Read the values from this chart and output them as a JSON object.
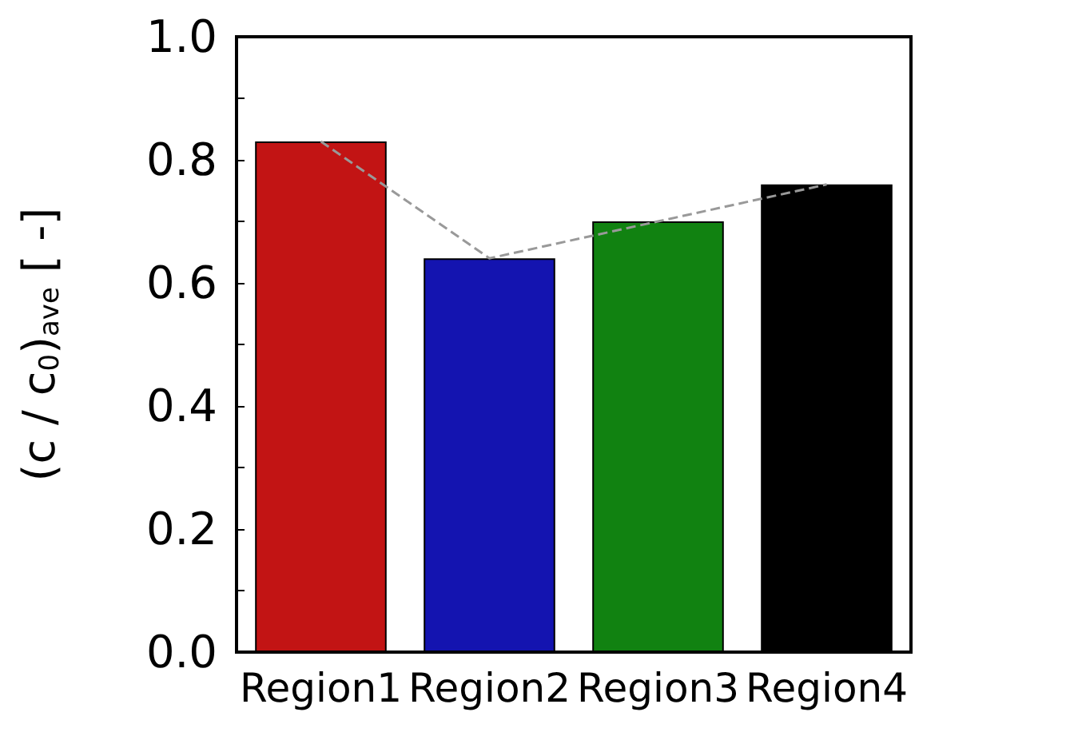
{
  "chart_data": {
    "type": "bar",
    "ylabel": "(c / c$_{0}$)$_{ave}$ [ -]",
    "categories": [
      "Region1",
      "Region2",
      "Region3",
      "Region4"
    ],
    "series": [
      {
        "colors": [
          "#c21414",
          "#1414b0",
          "#118211",
          "#000000"
        ],
        "values": [
          0.83,
          0.64,
          0.7,
          0.76
        ]
      },
      {
        "type": "line",
        "color": "#999999",
        "line_style": "dashed",
        "marker": "none",
        "values": [
          0.83,
          0.64,
          0.7,
          0.76
        ]
      }
    ],
    "ylim": [
      0,
      1.0
    ],
    "yticks": [
      {
        "value": 0,
        "label": "0.0"
      },
      {
        "value": 0.1,
        "label": null
      },
      0.2,
      {
        "value": 0.3,
        "label": null
      },
      0.4,
      {
        "value": 0.5,
        "label": null
      },
      0.6,
      {
        "value": 0.7,
        "label": null
      },
      0.8,
      {
        "value": 0.9,
        "label": null
      },
      {
        "value": 1,
        "label": "1.0"
      }
    ],
    "grid": false
  }
}
